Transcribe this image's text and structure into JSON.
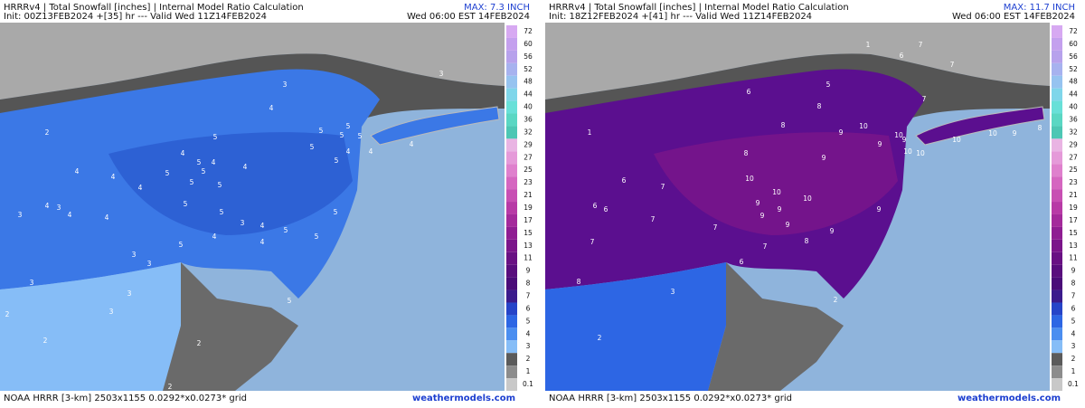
{
  "panels": [
    {
      "header": {
        "title": "HRRRv4 | Total Snowfall [inches] | Internal Model Ratio Calculation",
        "max": "MAX: 7.3 INCH",
        "init": "Init: 00Z13FEB2024 +[35] hr --- Valid Wed 11Z14FEB2024",
        "valid": "Wed 06:00 EST 14FEB2024"
      },
      "map_labels": [
        3,
        3,
        2,
        4,
        5,
        5,
        5,
        5,
        5,
        4,
        4,
        4,
        5,
        5,
        4,
        4,
        5,
        5,
        5,
        4,
        4,
        4,
        4,
        5,
        5,
        4,
        3,
        3,
        4,
        4,
        5,
        5,
        3,
        5,
        4,
        5,
        5,
        4,
        5,
        4,
        3,
        3,
        3,
        5,
        3,
        3,
        2,
        2,
        2,
        2
      ],
      "footer": {
        "grid": "NOAA HRRR [3-km] 2503x1155 0.0292*x0.0273* grid",
        "site": "weathermodels.com"
      }
    },
    {
      "header": {
        "title": "HRRRv4 | Total Snowfall [inches] | Internal Model Ratio Calculation",
        "max": "MAX: 11.7 INCH",
        "init": "Init: 18Z12FEB2024 +[41] hr --- Valid Wed 11Z14FEB2024",
        "valid": "Wed 06:00 EST 14FEB2024"
      },
      "map_labels": [
        1,
        7,
        6,
        7,
        6,
        5,
        7,
        9,
        8,
        10,
        9,
        10,
        9,
        10,
        10,
        10,
        9,
        8,
        10,
        8,
        8,
        9,
        1,
        6,
        7,
        10,
        10,
        10,
        9,
        9,
        9,
        9,
        9,
        9,
        6,
        6,
        7,
        7,
        7,
        8,
        7,
        8,
        2,
        6,
        3,
        2
      ],
      "footer": {
        "grid": "NOAA HRRR [3-km] 2503x1155 0.0292*x0.0273* grid",
        "site": "weathermodels.com"
      }
    }
  ],
  "colorbar": {
    "labels": [
      72,
      60,
      56,
      52,
      48,
      44,
      40,
      36,
      32,
      29,
      27,
      25,
      23,
      21,
      19,
      17,
      15,
      13,
      11,
      9,
      8,
      7,
      6,
      5,
      4,
      3,
      2,
      1,
      0.1
    ],
    "colors": [
      "#d7a9f2",
      "#c4a0ee",
      "#b7a2ec",
      "#a7b2ef",
      "#96c3f0",
      "#7fd6ea",
      "#68e0d8",
      "#5ad7c3",
      "#4dc7b4",
      "#e9b4e3",
      "#e59ad9",
      "#df80cd",
      "#d566c0",
      "#c84fb3",
      "#b83aa6",
      "#a42a9b",
      "#8f1d92",
      "#7b158a",
      "#691183",
      "#590e7d",
      "#4a0c78",
      "#3b1b8c",
      "#2644c8",
      "#2d66e4",
      "#4b8ef0",
      "#86bdf7",
      "#5b5b5b",
      "#8c8c8c",
      "#c8c8c8"
    ]
  }
}
